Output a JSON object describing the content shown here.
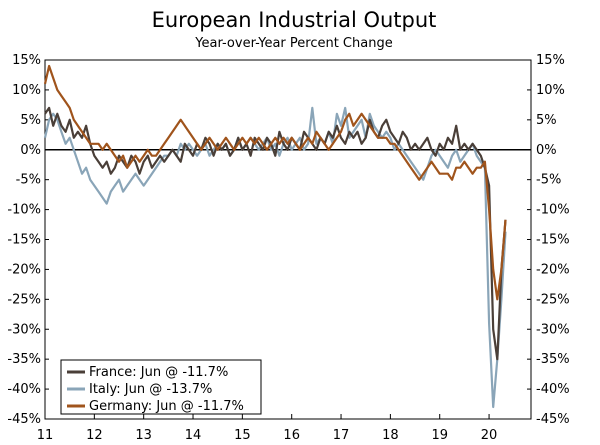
{
  "chart_data": {
    "type": "line",
    "title": "European Industrial Output",
    "subtitle": "Year-over-Year Percent Change",
    "ylim": [
      -45,
      15
    ],
    "y_ticks": [
      15,
      10,
      5,
      0,
      -5,
      -10,
      -15,
      -20,
      -25,
      -30,
      -35,
      -40,
      -45
    ],
    "y_tick_labels": [
      "15%",
      "10%",
      "5%",
      "0%",
      "-5%",
      "-10%",
      "-15%",
      "-20%",
      "-25%",
      "-30%",
      "-35%",
      "-40%",
      "-45%"
    ],
    "xlim": [
      2011.0,
      2020.85
    ],
    "x_ticks": [
      2011,
      2012,
      2013,
      2014,
      2015,
      2016,
      2017,
      2018,
      2019,
      2020
    ],
    "x_tick_labels": [
      "11",
      "12",
      "13",
      "14",
      "15",
      "16",
      "17",
      "18",
      "19",
      "20"
    ],
    "grid": false,
    "legend_position": "bottom-left",
    "x_start": 2011.0,
    "x_step": 0.0833333,
    "series": [
      {
        "name": "France",
        "legend": "France: Jun @ -11.7%",
        "color": "#4a3f38",
        "values": [
          6,
          7,
          4,
          6,
          4,
          3,
          5,
          2,
          3,
          2,
          4,
          1,
          -1,
          -2,
          -3,
          -2,
          -4,
          -3,
          -1,
          -2,
          -3,
          -1,
          -2,
          -4,
          -2,
          -1,
          -3,
          -2,
          -1,
          -2,
          -1,
          0,
          -1,
          -2,
          1,
          0,
          -1,
          1,
          0,
          2,
          1,
          -1,
          1,
          0,
          1,
          -1,
          0,
          2,
          0,
          1,
          -1,
          2,
          1,
          0,
          2,
          1,
          -1,
          3,
          1,
          0,
          2,
          1,
          0,
          3,
          2,
          1,
          0,
          2,
          1,
          3,
          2,
          4,
          2,
          1,
          3,
          2,
          3,
          1,
          2,
          5,
          3,
          2,
          4,
          5,
          3,
          2,
          1,
          3,
          2,
          0,
          1,
          0,
          1,
          2,
          0,
          -1,
          1,
          0,
          2,
          1,
          4,
          0,
          1,
          0,
          1,
          0,
          -1,
          -3,
          -6,
          -30,
          -35,
          -20,
          -11.7
        ]
      },
      {
        "name": "Italy",
        "legend": "Italy: Jun @ -13.7%",
        "color": "#8aa5b8",
        "values": [
          2,
          5,
          6,
          5,
          3,
          1,
          2,
          0,
          -2,
          -4,
          -3,
          -5,
          -6,
          -7,
          -8,
          -9,
          -7,
          -6,
          -5,
          -7,
          -6,
          -5,
          -4,
          -5,
          -6,
          -5,
          -4,
          -3,
          -2,
          -1,
          -1,
          0,
          -1,
          1,
          0,
          1,
          0,
          -1,
          0,
          1,
          -1,
          0,
          1,
          0,
          1,
          -1,
          0,
          2,
          0,
          1,
          2,
          1,
          0,
          1,
          2,
          0,
          1,
          -1,
          1,
          2,
          0,
          1,
          2,
          0,
          1,
          7,
          1,
          2,
          1,
          3,
          1,
          6,
          4,
          7,
          2,
          3,
          4,
          5,
          2,
          6,
          4,
          3,
          2,
          3,
          2,
          0,
          1,
          0,
          -1,
          -2,
          -3,
          -4,
          -5,
          -3,
          -1,
          0,
          -1,
          -2,
          -3,
          -1,
          0,
          -2,
          -1,
          0,
          1,
          -1,
          -2,
          -3,
          -29,
          -43,
          -35,
          -25,
          -13.7
        ]
      },
      {
        "name": "Germany",
        "legend": "Germany: Jun @ -11.7%",
        "color": "#a0541c",
        "values": [
          11,
          14,
          12,
          10,
          9,
          8,
          7,
          5,
          4,
          3,
          2,
          1,
          1,
          1,
          0,
          1,
          0,
          -1,
          -2,
          -1,
          -3,
          -2,
          -1,
          -2,
          -1,
          0,
          -1,
          -1,
          0,
          1,
          2,
          3,
          4,
          5,
          4,
          3,
          2,
          1,
          0,
          1,
          2,
          1,
          0,
          1,
          2,
          1,
          0,
          1,
          2,
          1,
          2,
          1,
          2,
          1,
          0,
          1,
          2,
          1,
          2,
          1,
          2,
          1,
          0,
          1,
          2,
          1,
          3,
          2,
          1,
          0,
          1,
          2,
          3,
          5,
          6,
          4,
          5,
          6,
          5,
          4,
          3,
          2,
          2,
          2,
          1,
          1,
          0,
          -1,
          -2,
          -3,
          -4,
          -5,
          -4,
          -3,
          -2,
          -3,
          -4,
          -4,
          -4,
          -5,
          -3,
          -3,
          -2,
          -3,
          -4,
          -3,
          -3,
          -2,
          -10,
          -20,
          -25,
          -20,
          -11.7
        ]
      }
    ]
  }
}
